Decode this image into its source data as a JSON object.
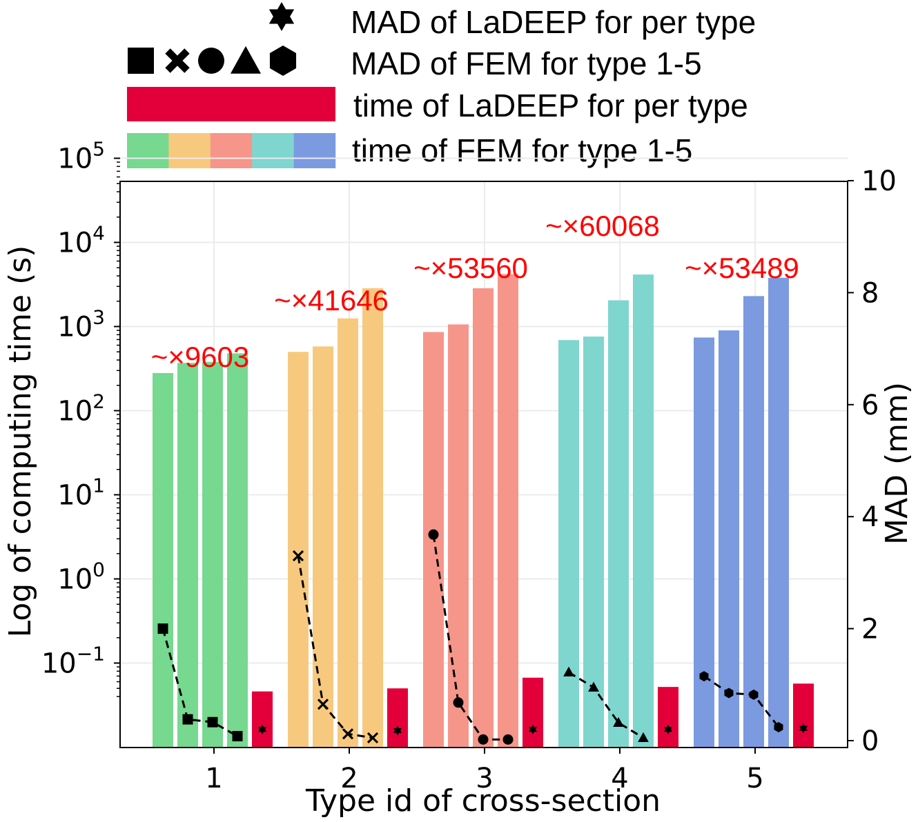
{
  "chart_data": {
    "type": "bar",
    "title": "",
    "xlabel": "Type id of cross-section",
    "ylabel_left": "Log of computing time (s)",
    "ylabel_right": "MAD (mm)",
    "categories": [
      "1",
      "2",
      "3",
      "4",
      "5"
    ],
    "y_left_scale": "log",
    "y_left_ticks": [
      {
        "mantissa": "10",
        "exp": "−1",
        "value": 0.1
      },
      {
        "mantissa": "10",
        "exp": "0",
        "value": 1
      },
      {
        "mantissa": "10",
        "exp": "1",
        "value": 10
      },
      {
        "mantissa": "10",
        "exp": "2",
        "value": 100
      },
      {
        "mantissa": "10",
        "exp": "3",
        "value": 1000
      },
      {
        "mantissa": "10",
        "exp": "4",
        "value": 10000
      },
      {
        "mantissa": "10",
        "exp": "5",
        "value": 100000
      }
    ],
    "ylim_right": [
      0,
      10
    ],
    "y_right_ticks": [
      "0",
      "2",
      "4",
      "6",
      "8",
      "10"
    ],
    "grid": true,
    "fem_time": [
      {
        "type": "1",
        "values": [
          280,
          370,
          380,
          480
        ]
      },
      {
        "type": "2",
        "values": [
          500,
          580,
          1250,
          2850
        ]
      },
      {
        "type": "3",
        "values": [
          860,
          1060,
          2850,
          4200
        ]
      },
      {
        "type": "4",
        "values": [
          690,
          760,
          2050,
          4150
        ]
      },
      {
        "type": "5",
        "values": [
          740,
          900,
          2300,
          3800
        ]
      }
    ],
    "ladeep_time": [
      0.046,
      0.05,
      0.067,
      0.052,
      0.057
    ],
    "fem_mad": [
      {
        "type": "1",
        "marker": "square",
        "values": [
          2.0,
          0.38,
          0.33,
          0.08
        ]
      },
      {
        "type": "2",
        "marker": "x",
        "values": [
          3.3,
          0.65,
          0.12,
          0.05
        ]
      },
      {
        "type": "3",
        "marker": "circle",
        "values": [
          3.68,
          0.68,
          0.02,
          0.02
        ]
      },
      {
        "type": "4",
        "marker": "triangle",
        "values": [
          1.22,
          0.95,
          0.32,
          0.05
        ]
      },
      {
        "type": "5",
        "marker": "hexagon",
        "values": [
          1.15,
          0.85,
          0.82,
          0.24
        ]
      }
    ],
    "ladeep_mad": [
      0.2,
      0.18,
      0.2,
      0.2,
      0.22
    ],
    "speedups": [
      "~×9603",
      "~×41646",
      "~×53560",
      "~×60068",
      "~×53489"
    ],
    "legend": [
      {
        "marker": "star",
        "label": "MAD of LaDEEP for per type"
      },
      {
        "marker": "fem-markers",
        "label": "MAD of FEM for type 1-5"
      },
      {
        "marker": "red-bar",
        "label": "time of LaDEEP for per type"
      },
      {
        "marker": "color-bar",
        "label": "time of FEM for type 1-5"
      }
    ],
    "colors": {
      "type_colors": [
        "#77d890",
        "#f7c97f",
        "#f6968a",
        "#7fd6cf",
        "#7b9ae0"
      ],
      "ladeep": "#e3003a",
      "speedup_text": "#ff0000",
      "grid": "#ebebeb"
    }
  }
}
